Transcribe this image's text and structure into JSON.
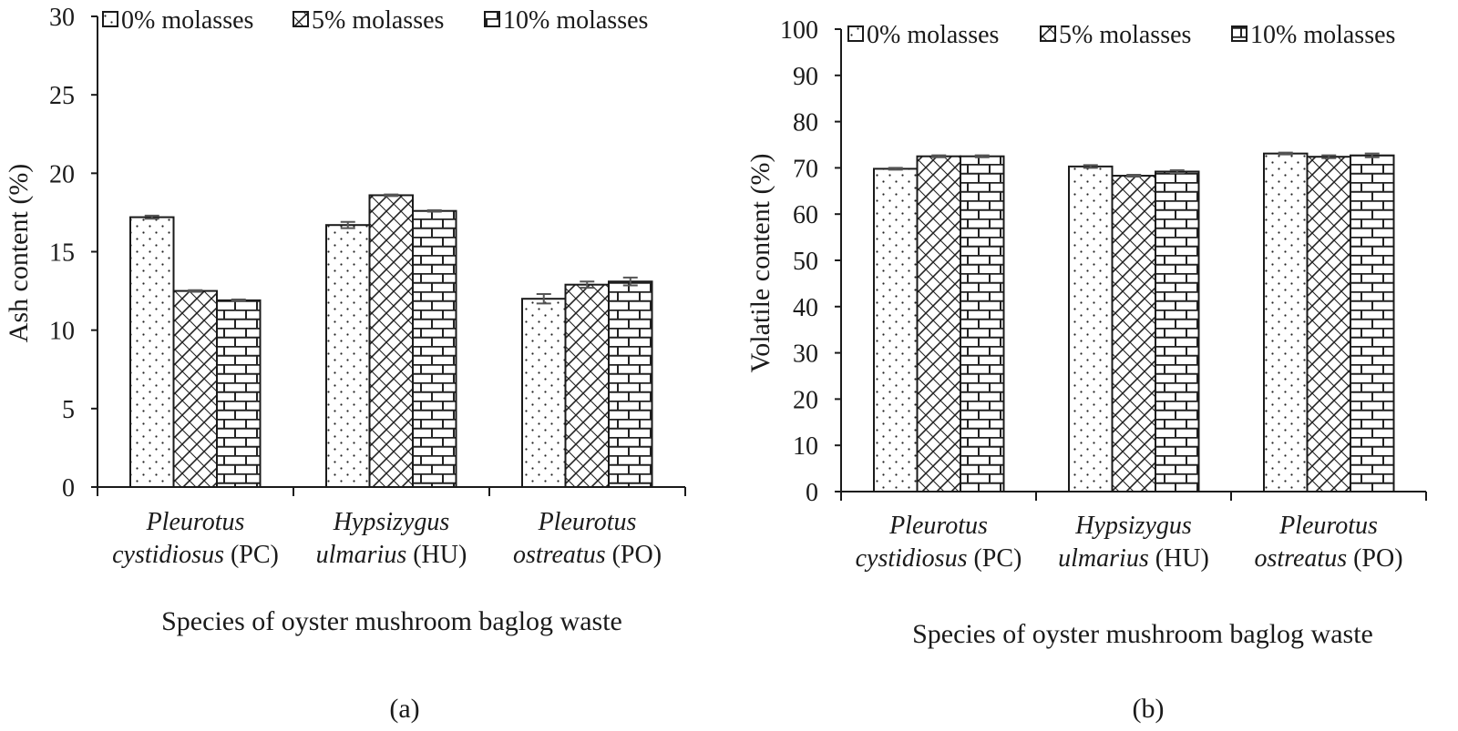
{
  "chart_data": [
    {
      "type": "bar",
      "panel_label": "(a)",
      "ylabel": "Ash content (%)",
      "xlabel": "Species of oyster mushroom baglog waste",
      "ylim": [
        0,
        30
      ],
      "yticks": [
        "0",
        "5",
        "10",
        "15",
        "20",
        "25",
        "30"
      ],
      "grid": false,
      "legend_position": "top",
      "categories": [
        {
          "italic": "Pleurotus",
          "line2_italic": "cystidiosus",
          "line2_normal": " (PC)"
        },
        {
          "italic": "Hypsizygus",
          "line2_italic": "ulmarius",
          "line2_normal": " (HU)"
        },
        {
          "italic": "Pleurotus",
          "line2_italic": "ostreatus",
          "line2_normal": " (PO)"
        }
      ],
      "series": [
        {
          "name": "0% molasses",
          "pattern": "dots",
          "values": [
            17.2,
            16.7,
            12.0
          ],
          "errors": [
            0.1,
            0.2,
            0.3
          ]
        },
        {
          "name": "5% molasses",
          "pattern": "diag",
          "values": [
            12.5,
            18.6,
            12.9
          ],
          "errors": [
            0.05,
            0.05,
            0.2
          ]
        },
        {
          "name": "10% molasses",
          "pattern": "brick",
          "values": [
            11.9,
            17.6,
            13.1
          ],
          "errors": [
            0.05,
            0.05,
            0.25
          ]
        }
      ]
    },
    {
      "type": "bar",
      "panel_label": "(b)",
      "ylabel": "Volatile content (%)",
      "xlabel": "Species of oyster mushroom baglog waste",
      "ylim": [
        0,
        100
      ],
      "yticks": [
        "0",
        "10",
        "20",
        "30",
        "40",
        "50",
        "60",
        "70",
        "80",
        "90",
        "100"
      ],
      "grid": false,
      "legend_position": "top",
      "categories": [
        {
          "italic": "Pleurotus",
          "line2_italic": "cystidiosus",
          "line2_normal": " (PC)"
        },
        {
          "italic": "Hypsizygus",
          "line2_italic": "ulmarius",
          "line2_normal": " (HU)"
        },
        {
          "italic": "Pleurotus",
          "line2_italic": "ostreatus",
          "line2_normal": " (PO)"
        }
      ],
      "series": [
        {
          "name": "0% molasses",
          "pattern": "dots",
          "values": [
            69.8,
            70.3,
            73.1
          ],
          "errors": [
            0.2,
            0.3,
            0.2
          ]
        },
        {
          "name": "5% molasses",
          "pattern": "diag",
          "values": [
            72.5,
            68.3,
            72.4
          ],
          "errors": [
            0.2,
            0.2,
            0.3
          ]
        },
        {
          "name": "10% molasses",
          "pattern": "brick",
          "values": [
            72.5,
            69.2,
            72.7
          ],
          "errors": [
            0.2,
            0.3,
            0.4
          ]
        }
      ]
    }
  ]
}
